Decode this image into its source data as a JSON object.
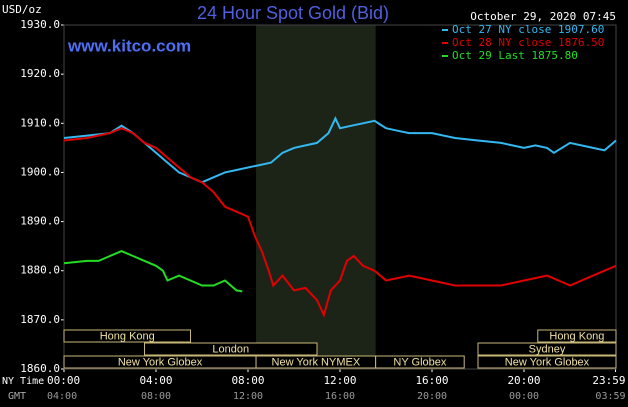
{
  "chart_data": {
    "type": "line",
    "title": "24 Hour Spot Gold (Bid)",
    "website": "www.kitco.com",
    "timestamp": "October 29, 2020 07:45",
    "y_label": "USD/oz",
    "x_row_labels": [
      "NY Time",
      "GMT"
    ],
    "xlim": [
      0,
      24
    ],
    "ylim": [
      1860,
      1930
    ],
    "yticks": [
      {
        "value": 1860,
        "label": "1860.0"
      },
      {
        "value": 1870,
        "label": "1870.0"
      },
      {
        "value": 1880,
        "label": "1880.0"
      },
      {
        "value": 1890,
        "label": "1890.0"
      },
      {
        "value": 1900,
        "label": "1900.0"
      },
      {
        "value": 1910,
        "label": "1910.0"
      },
      {
        "value": 1920,
        "label": "1920.0"
      },
      {
        "value": 1930,
        "label": "1930.0"
      }
    ],
    "xticks": [
      {
        "value": 0,
        "label": "00:00"
      },
      {
        "value": 4,
        "label": "04:00"
      },
      {
        "value": 8,
        "label": "08:00"
      },
      {
        "value": 12,
        "label": "12:00"
      },
      {
        "value": 16,
        "label": "16:00"
      },
      {
        "value": 20,
        "label": "20:00"
      },
      {
        "value": 23.98,
        "label": "23:59"
      }
    ],
    "gmt_ticks": [
      {
        "value": 0,
        "label": "04:00"
      },
      {
        "value": 4,
        "label": "08:00"
      },
      {
        "value": 8,
        "label": "12:00"
      },
      {
        "value": 12,
        "label": "16:00"
      },
      {
        "value": 16,
        "label": "20:00"
      },
      {
        "value": 20,
        "label": "00:00"
      },
      {
        "value": 23.98,
        "label": "03:59"
      }
    ],
    "shaded_range": [
      8.35,
      13.55
    ],
    "session_rows": [
      [
        {
          "label": "Hong Kong",
          "start": 0,
          "end": 5.5
        },
        {
          "label": "Hong Kong",
          "start": 20.6,
          "end": 24
        }
      ],
      [
        {
          "label": "London",
          "start": 3.5,
          "end": 11
        },
        {
          "label": "Sydney",
          "start": 18,
          "end": 24
        }
      ],
      [
        {
          "label": "New York Globex",
          "start": 0,
          "end": 8.35
        },
        {
          "label": "New York NYMEX",
          "start": 8.35,
          "end": 13.55
        },
        {
          "label": "NY Globex",
          "start": 13.55,
          "end": 17.4
        },
        {
          "label": "New York Globex",
          "start": 18,
          "end": 24
        }
      ]
    ],
    "series": [
      {
        "name": "Oct 27 NY close 1907.60",
        "color": "#33b8f0",
        "x": [
          0,
          1,
          2,
          2.5,
          3,
          3.5,
          4,
          4.5,
          5,
          5.5,
          6,
          6.5,
          7,
          7.5,
          8,
          8.5,
          9,
          9.5,
          10,
          10.5,
          11,
          11.5,
          11.8,
          12,
          12.5,
          13,
          13.5,
          14,
          14.5,
          15,
          16,
          17,
          18,
          19,
          20,
          20.5,
          21,
          21.3,
          22,
          23,
          23.5,
          24
        ],
        "values": [
          1907,
          1907.5,
          1908,
          1909.5,
          1908,
          1906,
          1904,
          1902,
          1900,
          1899,
          1898,
          1899,
          1900,
          1900.5,
          1901,
          1901.5,
          1902,
          1904,
          1905,
          1905.5,
          1906,
          1908,
          1911,
          1909,
          1909.5,
          1910,
          1910.5,
          1909,
          1908.5,
          1908,
          1908,
          1907,
          1906.5,
          1906,
          1905,
          1905.5,
          1905,
          1904,
          1906,
          1905,
          1904.5,
          1906.5
        ]
      },
      {
        "name": "Oct 28 NY close 1876.50",
        "color": "#e00000",
        "x": [
          0,
          1,
          2,
          2.5,
          3,
          3.5,
          4,
          4.5,
          5,
          5.5,
          6,
          6.5,
          7,
          7.5,
          8,
          8.3,
          8.6,
          8.9,
          9.1,
          9.5,
          10,
          10.5,
          11,
          11.3,
          11.6,
          12,
          12.3,
          12.6,
          13,
          13.5,
          14,
          15,
          16,
          17,
          18,
          19,
          20,
          21,
          21.5,
          22,
          23,
          24
        ],
        "values": [
          1906.5,
          1907,
          1908,
          1909,
          1908,
          1906,
          1905,
          1903,
          1901,
          1899,
          1898,
          1896,
          1893,
          1892,
          1891,
          1887,
          1884,
          1880,
          1877,
          1879,
          1876,
          1876.5,
          1874,
          1871,
          1876,
          1878,
          1882,
          1883,
          1881,
          1880,
          1878,
          1879,
          1878,
          1877,
          1877,
          1877,
          1878,
          1879,
          1878,
          1877,
          1879,
          1881
        ]
      },
      {
        "name": "Oct 29 Last 1875.80",
        "color": "#22dd22",
        "x": [
          0,
          1,
          1.5,
          2,
          2.5,
          3,
          3.5,
          4,
          4.3,
          4.5,
          5,
          5.5,
          6,
          6.5,
          7,
          7.5,
          7.75
        ],
        "values": [
          1881.5,
          1882,
          1882,
          1883,
          1884,
          1883,
          1882,
          1881,
          1880,
          1878,
          1879,
          1878,
          1877,
          1877,
          1878,
          1876,
          1875.8
        ]
      }
    ]
  }
}
